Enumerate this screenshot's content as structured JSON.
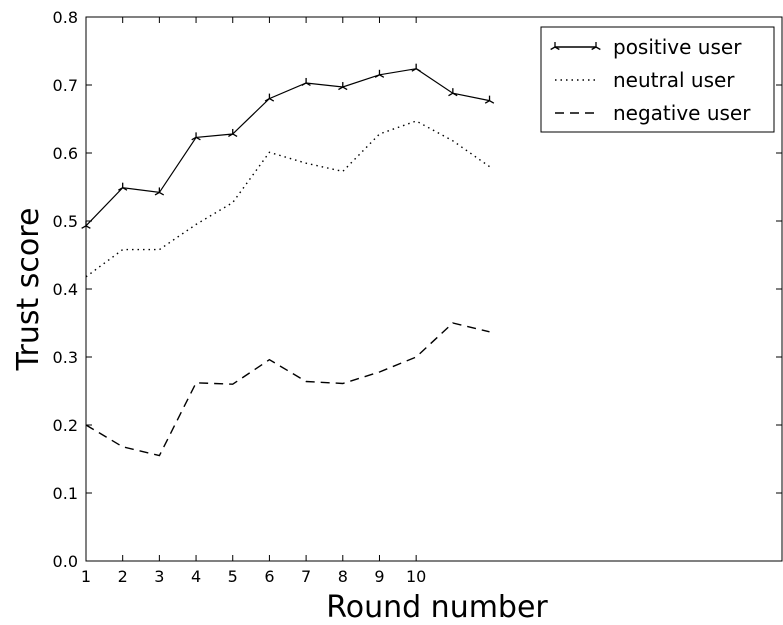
{
  "chart_data": {
    "type": "line",
    "title": "",
    "xlabel": "Round number",
    "ylabel": "Trust score",
    "xlim": [
      1,
      20
    ],
    "ylim": [
      0.0,
      0.8
    ],
    "x_ticks": [
      "1",
      "2",
      "3",
      "4",
      "5",
      "6",
      "7",
      "8",
      "9",
      "10"
    ],
    "y_ticks": [
      "0.0",
      "0.1",
      "0.2",
      "0.3",
      "0.4",
      "0.5",
      "0.6",
      "0.7",
      "0.8"
    ],
    "grid": false,
    "legend_position": "top-right",
    "x": [
      1,
      2,
      3,
      4,
      5,
      6,
      7,
      8,
      9,
      10,
      11,
      12
    ],
    "series": [
      {
        "name": "positive user",
        "values": [
          0.493,
          0.549,
          0.542,
          0.623,
          0.628,
          0.68,
          0.703,
          0.697,
          0.715,
          0.724,
          0.688,
          0.677
        ],
        "style": "solid-tri-marker",
        "color": "#000000"
      },
      {
        "name": "neutral user",
        "values": [
          0.418,
          0.458,
          0.458,
          0.495,
          0.527,
          0.601,
          0.585,
          0.573,
          0.628,
          0.647,
          0.618,
          0.58
        ],
        "style": "dotted",
        "color": "#000000"
      },
      {
        "name": "negative user",
        "values": [
          0.2,
          0.168,
          0.155,
          0.262,
          0.26,
          0.296,
          0.264,
          0.261,
          0.278,
          0.3,
          0.35,
          0.337
        ],
        "style": "dashed",
        "color": "#000000"
      }
    ]
  }
}
